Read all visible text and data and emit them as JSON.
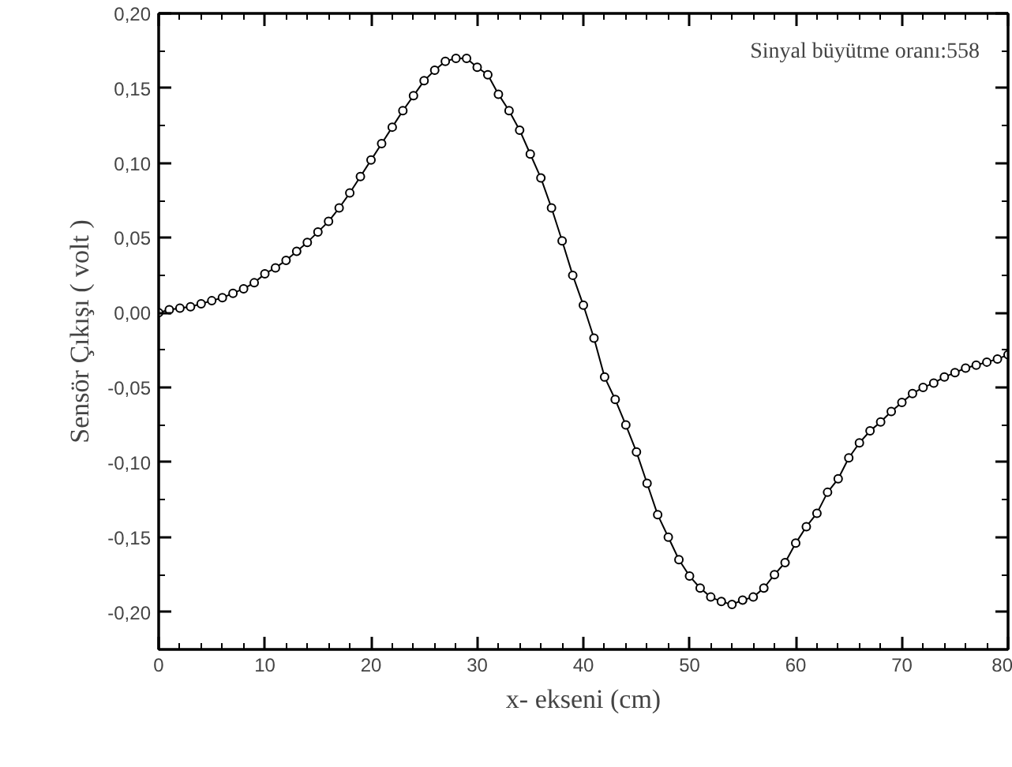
{
  "chart_data": {
    "type": "line",
    "xlabel": "x- ekseni (cm)",
    "ylabel": "Sensör Çıkışı ( volt )",
    "annotations": [
      "Sinyal büyütme oranı:558"
    ],
    "x": [
      0,
      1,
      2,
      3,
      4,
      5,
      6,
      7,
      8,
      9,
      10,
      11,
      12,
      13,
      14,
      15,
      16,
      17,
      18,
      19,
      20,
      21,
      22,
      23,
      24,
      25,
      26,
      27,
      28,
      29,
      30,
      31,
      32,
      33,
      34,
      35,
      36,
      37,
      38,
      39,
      40,
      41,
      42,
      43,
      44,
      45,
      46,
      47,
      48,
      49,
      50,
      51,
      52,
      53,
      54,
      55,
      56,
      57,
      58,
      59,
      60,
      61,
      62,
      63,
      64,
      65,
      66,
      67,
      68,
      69,
      70,
      71,
      72,
      73,
      74,
      75,
      76,
      77,
      78,
      79,
      80
    ],
    "series": [
      {
        "color": "#000000",
        "values": [
          0.0,
          0.002,
          0.003,
          0.004,
          0.006,
          0.008,
          0.01,
          0.013,
          0.016,
          0.02,
          0.026,
          0.03,
          0.035,
          0.041,
          0.047,
          0.054,
          0.061,
          0.07,
          0.08,
          0.091,
          0.102,
          0.113,
          0.124,
          0.135,
          0.145,
          0.155,
          0.162,
          0.168,
          0.17,
          0.17,
          0.164,
          0.159,
          0.146,
          0.135,
          0.122,
          0.106,
          0.09,
          0.07,
          0.048,
          0.025,
          0.005,
          -0.017,
          -0.043,
          -0.058,
          -0.075,
          -0.093,
          -0.114,
          -0.135,
          -0.15,
          -0.165,
          -0.176,
          -0.184,
          -0.19,
          -0.193,
          -0.195,
          -0.192,
          -0.19,
          -0.184,
          -0.175,
          -0.167,
          -0.154,
          -0.143,
          -0.134,
          -0.12,
          -0.111,
          -0.097,
          -0.087,
          -0.079,
          -0.073,
          -0.066,
          -0.06,
          -0.054,
          -0.05,
          -0.047,
          -0.043,
          -0.04,
          -0.037,
          -0.035,
          -0.033,
          -0.031,
          -0.028
        ]
      }
    ],
    "xlim": [
      0,
      80
    ],
    "ylim": [
      -0.225,
      0.2
    ],
    "xticks": [
      0,
      10,
      20,
      30,
      40,
      50,
      60,
      70,
      80
    ],
    "yticks": [
      {
        "value": -0.2,
        "label": "-0,20"
      },
      {
        "value": -0.15,
        "label": "-0,15"
      },
      {
        "value": -0.1,
        "label": "-0,10"
      },
      {
        "value": -0.05,
        "label": "-0,05"
      },
      {
        "value": 0,
        "label": "0,00"
      },
      {
        "value": 0.05,
        "label": "0,05"
      },
      {
        "value": 0.1,
        "label": "0,10"
      },
      {
        "value": 0.15,
        "label": "0,15"
      },
      {
        "value": 0.2,
        "label": "0,20"
      }
    ],
    "marker": "circle",
    "line_style": "solid",
    "grid": false
  }
}
